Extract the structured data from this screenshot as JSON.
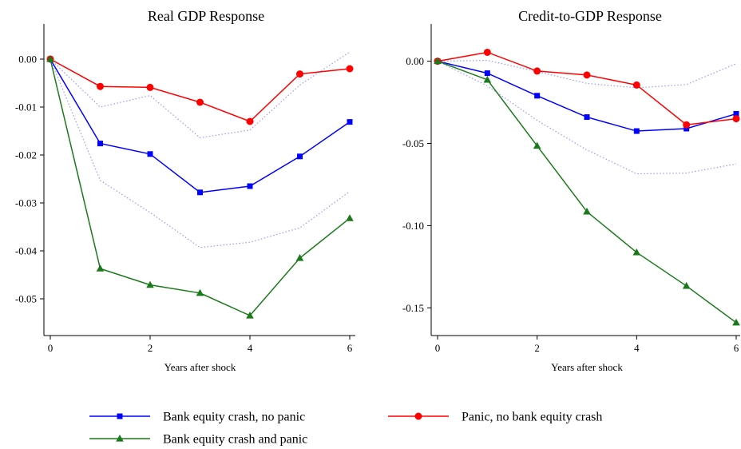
{
  "chart_data": [
    {
      "type": "line",
      "title": "Real GDP Response",
      "xlabel": "Years after shock",
      "ylabel": "",
      "xlim": [
        0,
        6
      ],
      "ylim": [
        -0.056,
        0.003
      ],
      "x_ticks": [
        0,
        2,
        4,
        6
      ],
      "y_ticks": [
        0.0,
        -0.01,
        -0.02,
        -0.03,
        -0.04,
        -0.05
      ],
      "y_tick_labels": [
        "0.00",
        "-0.01",
        "-0.02",
        "-0.03",
        "-0.04",
        "-0.05"
      ],
      "grid": false,
      "x": [
        0,
        1,
        2,
        3,
        4,
        5,
        6
      ],
      "series": [
        {
          "name": "Bank equity crash, no panic",
          "color": "#0000ff",
          "marker": "square",
          "values": [
            0.0,
            -0.0176,
            -0.0198,
            -0.0278,
            -0.0265,
            -0.0203,
            -0.0131
          ]
        },
        {
          "name": "Panic, no bank equity crash",
          "color": "#ff0000",
          "marker": "circle",
          "values": [
            0.0,
            -0.0057,
            -0.0059,
            -0.009,
            -0.013,
            -0.0031,
            -0.002
          ]
        },
        {
          "name": "Bank equity crash and panic",
          "color": "#1a7a1a",
          "marker": "triangle",
          "values": [
            0.0,
            -0.0437,
            -0.0471,
            -0.0488,
            -0.0535,
            -0.0415,
            -0.0332
          ]
        }
      ],
      "bands": [
        {
          "color": "#9999ff",
          "upper": [
            0.0,
            -0.01,
            -0.0076,
            -0.0164,
            -0.0148,
            -0.0054,
            0.0015
          ],
          "lower": [
            0.0,
            -0.0253,
            -0.032,
            -0.0393,
            -0.0382,
            -0.0352,
            -0.0276
          ]
        }
      ]
    },
    {
      "type": "line",
      "title": "Credit-to-GDP Response",
      "xlabel": "Years after shock",
      "ylabel": "",
      "xlim": [
        0,
        6
      ],
      "ylim": [
        -0.162,
        0.01
      ],
      "x_ticks": [
        0,
        2,
        4,
        6
      ],
      "y_ticks": [
        0.0,
        -0.05,
        -0.1,
        -0.15
      ],
      "y_tick_labels": [
        "0.00",
        "-0.05",
        "-0.10",
        "-0.15"
      ],
      "grid": false,
      "x": [
        0,
        1,
        2,
        3,
        4,
        5,
        6
      ],
      "series": [
        {
          "name": "Bank equity crash, no panic",
          "color": "#0000ff",
          "marker": "square",
          "values": [
            0.0,
            -0.0073,
            -0.021,
            -0.034,
            -0.0425,
            -0.041,
            -0.032
          ]
        },
        {
          "name": "Panic, no bank equity crash",
          "color": "#ff0000",
          "marker": "circle",
          "values": [
            0.0,
            0.0054,
            -0.006,
            -0.0084,
            -0.0145,
            -0.0387,
            -0.035
          ]
        },
        {
          "name": "Bank equity crash and panic",
          "color": "#1a7a1a",
          "marker": "triangle",
          "values": [
            0.0,
            -0.0113,
            -0.0515,
            -0.0915,
            -0.1163,
            -0.1367,
            -0.159
          ]
        }
      ],
      "bands": [
        {
          "color": "#9999ff",
          "upper": [
            0.0,
            0.0005,
            -0.0063,
            -0.0135,
            -0.0162,
            -0.0142,
            -0.0015
          ],
          "lower": [
            0.0,
            -0.015,
            -0.036,
            -0.054,
            -0.0685,
            -0.068,
            -0.0625
          ]
        }
      ]
    }
  ],
  "legend": {
    "items": [
      {
        "label": "Bank equity crash, no panic",
        "color": "#0000ff",
        "marker": "square"
      },
      {
        "label": "Panic, no bank equity crash",
        "color": "#ff0000",
        "marker": "circle"
      },
      {
        "label": "Bank equity crash and panic",
        "color": "#1a7a1a",
        "marker": "triangle"
      }
    ]
  }
}
